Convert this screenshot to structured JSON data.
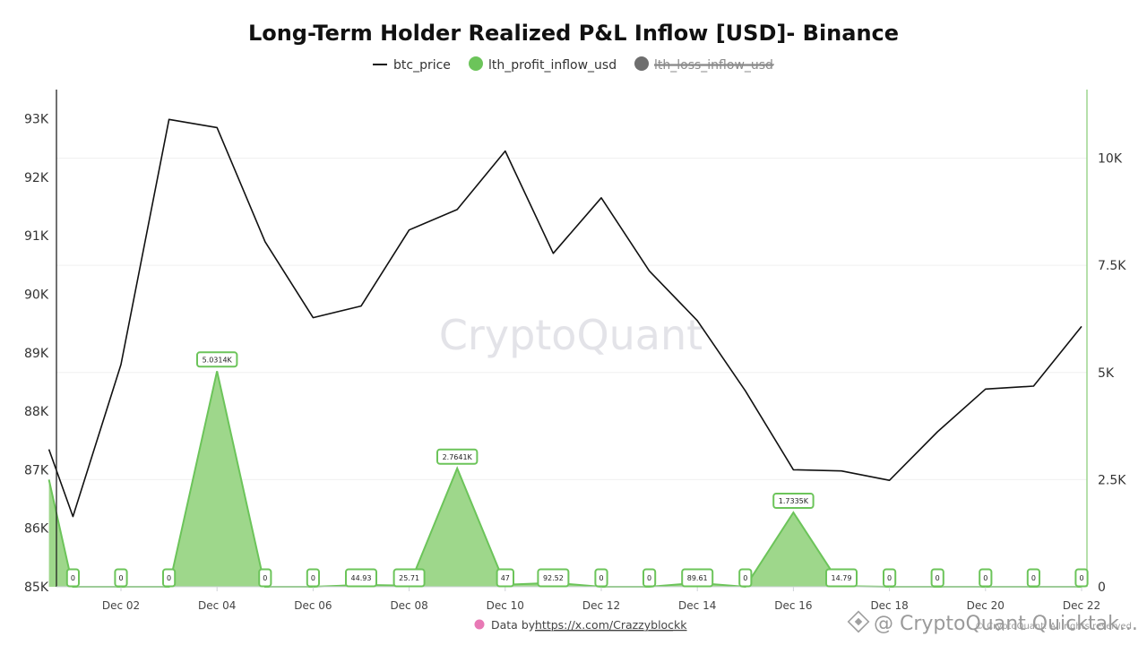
{
  "chart_data": {
    "type": "line",
    "title": "Long-Term Holder Realized P&L Inflow [USD]- Binance",
    "legend": [
      {
        "name": "btc_price",
        "marker": "line",
        "color": "#111111",
        "disabled": false
      },
      {
        "name": "lth_profit_inflow_usd",
        "marker": "circle",
        "color": "#6cc45a",
        "disabled": false
      },
      {
        "name": "lth_loss_inflow_usd",
        "marker": "circle",
        "color": "#6e6e6e",
        "disabled": true
      }
    ],
    "left_axis": {
      "min": 85000,
      "max": 93500,
      "ticks": [
        85000,
        86000,
        87000,
        88000,
        89000,
        90000,
        91000,
        92000,
        93000
      ],
      "tick_labels": [
        "85K",
        "86K",
        "87K",
        "88K",
        "89K",
        "90K",
        "91K",
        "92K",
        "93K"
      ]
    },
    "right_axis": {
      "min": 0,
      "max": 11600,
      "ticks": [
        0,
        2500,
        5000,
        7500,
        10000
      ],
      "tick_labels": [
        "0",
        "2.5K",
        "5K",
        "7.5K",
        "10K"
      ]
    },
    "x_axis": {
      "labels": [
        "Dec 02",
        "Dec 04",
        "Dec 06",
        "Dec 08",
        "Dec 10",
        "Dec 12",
        "Dec 14",
        "Dec 16",
        "Dec 18",
        "Dec 20",
        "Dec 22"
      ]
    },
    "series": [
      {
        "name": "btc_price",
        "axis": "left",
        "color": "#111111",
        "points": [
          {
            "x": "Nov 30 12:00",
            "y": 87350
          },
          {
            "x": "Dec 01",
            "y": 86200
          },
          {
            "x": "Dec 02",
            "y": 88800
          },
          {
            "x": "Dec 03",
            "y": 92990
          },
          {
            "x": "Dec 04",
            "y": 92850
          },
          {
            "x": "Dec 05",
            "y": 90900
          },
          {
            "x": "Dec 06",
            "y": 89600
          },
          {
            "x": "Dec 07",
            "y": 89800
          },
          {
            "x": "Dec 08",
            "y": 91100
          },
          {
            "x": "Dec 09",
            "y": 91450
          },
          {
            "x": "Dec 10",
            "y": 92450
          },
          {
            "x": "Dec 11",
            "y": 90700
          },
          {
            "x": "Dec 12",
            "y": 91650
          },
          {
            "x": "Dec 13",
            "y": 90400
          },
          {
            "x": "Dec 14",
            "y": 89550
          },
          {
            "x": "Dec 15",
            "y": 88350
          },
          {
            "x": "Dec 16",
            "y": 87000
          },
          {
            "x": "Dec 17",
            "y": 86980
          },
          {
            "x": "Dec 18",
            "y": 86820
          },
          {
            "x": "Dec 19",
            "y": 87650
          },
          {
            "x": "Dec 20",
            "y": 88380
          },
          {
            "x": "Dec 21",
            "y": 88430
          },
          {
            "x": "Dec 22",
            "y": 89450
          }
        ]
      },
      {
        "name": "lth_profit_inflow_usd",
        "axis": "right",
        "color": "#6cc45a",
        "points": [
          {
            "x": "Nov 30 12:00",
            "y": 2500,
            "label": ""
          },
          {
            "x": "Dec 01",
            "y": 0,
            "label": "0"
          },
          {
            "x": "Dec 02",
            "y": 0,
            "label": "0"
          },
          {
            "x": "Dec 03",
            "y": 0,
            "label": "0"
          },
          {
            "x": "Dec 04",
            "y": 5031.4,
            "label": "5.0314K"
          },
          {
            "x": "Dec 05",
            "y": 0,
            "label": "0"
          },
          {
            "x": "Dec 06",
            "y": 0,
            "label": "0"
          },
          {
            "x": "Dec 07",
            "y": 44.93,
            "label": "44.93"
          },
          {
            "x": "Dec 08",
            "y": 25.71,
            "label": "25.71"
          },
          {
            "x": "Dec 09",
            "y": 2764.1,
            "label": "2.7641K"
          },
          {
            "x": "Dec 10",
            "y": 47,
            "label": "47"
          },
          {
            "x": "Dec 11",
            "y": 92.52,
            "label": "92.52"
          },
          {
            "x": "Dec 12",
            "y": 0,
            "label": "0"
          },
          {
            "x": "Dec 13",
            "y": 0,
            "label": "0"
          },
          {
            "x": "Dec 14",
            "y": 89.61,
            "label": "89.61"
          },
          {
            "x": "Dec 15",
            "y": 0,
            "label": "0"
          },
          {
            "x": "Dec 16",
            "y": 1733.5,
            "label": "1.7335K"
          },
          {
            "x": "Dec 17",
            "y": 14.79,
            "label": "14.79"
          },
          {
            "x": "Dec 18",
            "y": 0,
            "label": "0"
          },
          {
            "x": "Dec 19",
            "y": 0,
            "label": "0"
          },
          {
            "x": "Dec 20",
            "y": 0,
            "label": "0"
          },
          {
            "x": "Dec 21",
            "y": 0,
            "label": "0"
          },
          {
            "x": "Dec 22",
            "y": 0,
            "label": "0"
          }
        ]
      }
    ],
    "grid": true,
    "legend_position": "top-center"
  },
  "watermark": "CryptoQuant",
  "credit": {
    "prefix": "Data by: ",
    "link": "https://x.com/Crazzyblockk"
  },
  "overlay": {
    "text": "@ CryptoQuant Quicktak...",
    "small": "© CryptoQuant. All rights reserved"
  },
  "colors": {
    "profit_fill": "#99d585",
    "profit_stroke": "#6cc45a",
    "axis_right": "#8fd07e",
    "grid": "#f0f0f0",
    "pink_icon": "#e879b5"
  }
}
